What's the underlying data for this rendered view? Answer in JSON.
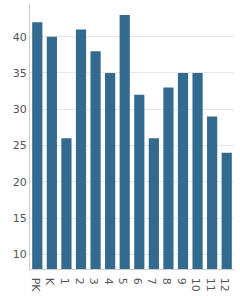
{
  "chart_data": {
    "type": "bar",
    "categories": [
      "PK",
      "K",
      "1",
      "2",
      "3",
      "4",
      "5",
      "6",
      "7",
      "8",
      "9",
      "10",
      "11",
      "12"
    ],
    "values": [
      42,
      40,
      26,
      41,
      38,
      35,
      43,
      32,
      26,
      33,
      35,
      35,
      29,
      24
    ],
    "color": "#336a90",
    "ylim": [
      8,
      44.5
    ],
    "yticks": [
      10,
      15,
      20,
      25,
      30,
      35,
      40
    ],
    "grid": true
  }
}
